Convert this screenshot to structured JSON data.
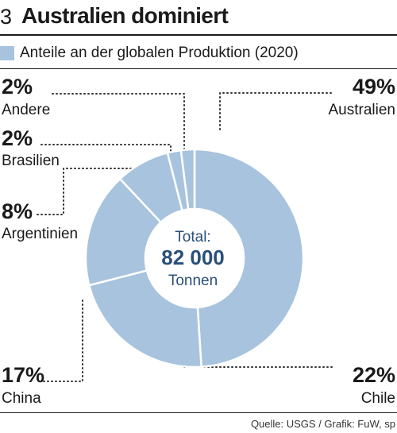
{
  "header": {
    "figure_number": "3",
    "title": "Australien dominiert"
  },
  "legend": {
    "label": "Anteile an der globalen Produktion (2020)",
    "color": "#a8c3de"
  },
  "center": {
    "line1": "Total:",
    "line2": "82 000",
    "line3": "Tonnen"
  },
  "source": "Quelle: USGS / Grafik: FuW, sp",
  "colors": {
    "slice": "#a8c3de",
    "separator": "#ffffff",
    "center_text": "#2a4f7a",
    "leader": "#333333"
  },
  "labels": [
    {
      "pct": "49%",
      "name": "Australien"
    },
    {
      "pct": "22%",
      "name": "Chile"
    },
    {
      "pct": "17%",
      "name": "China"
    },
    {
      "pct": "8%",
      "name": "Argentinien"
    },
    {
      "pct": "2%",
      "name": "Brasilien"
    },
    {
      "pct": "2%",
      "name": "Andere"
    }
  ],
  "chart_data": {
    "type": "pie",
    "title": "Australien dominiert",
    "subtitle": "Anteile an der globalen Produktion (2020)",
    "categories": [
      "Australien",
      "Chile",
      "China",
      "Argentinien",
      "Brasilien",
      "Andere"
    ],
    "values": [
      49,
      22,
      17,
      8,
      2,
      2
    ],
    "unit": "%",
    "total": "82 000 Tonnen"
  }
}
